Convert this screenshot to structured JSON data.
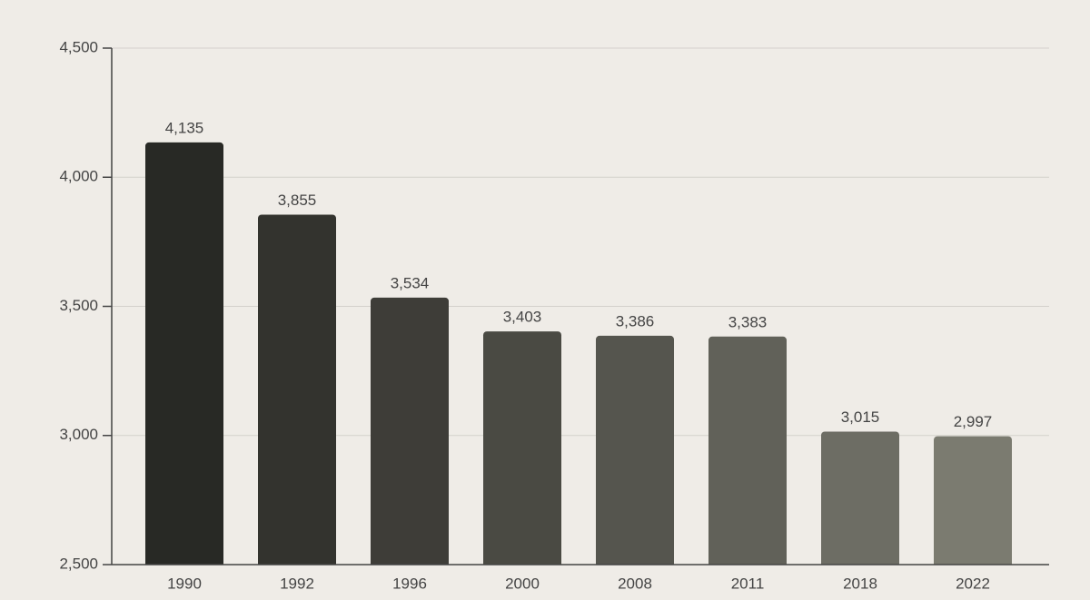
{
  "chart_data": {
    "type": "bar",
    "categories": [
      "1990",
      "1992",
      "1996",
      "2000",
      "2008",
      "2011",
      "2018",
      "2022"
    ],
    "values": [
      4135,
      3855,
      3534,
      3403,
      3386,
      3383,
      3015,
      2997
    ],
    "value_labels": [
      "4,135",
      "3,855",
      "3,534",
      "3,403",
      "3,386",
      "3,383",
      "3,015",
      "2,997"
    ],
    "colors": [
      "#282925",
      "#33332e",
      "#3e3d38",
      "#4a4a43",
      "#55554e",
      "#616159",
      "#6d6d64",
      "#7b7b70"
    ],
    "ylim": [
      2500,
      4500
    ],
    "yticks": [
      {
        "value": 2500,
        "label": "2,500"
      },
      {
        "value": 3000,
        "label": "3,000"
      },
      {
        "value": 3500,
        "label": "3,500"
      },
      {
        "value": 4000,
        "label": "4,000"
      },
      {
        "value": 4500,
        "label": "4,500"
      }
    ],
    "grid": true
  }
}
